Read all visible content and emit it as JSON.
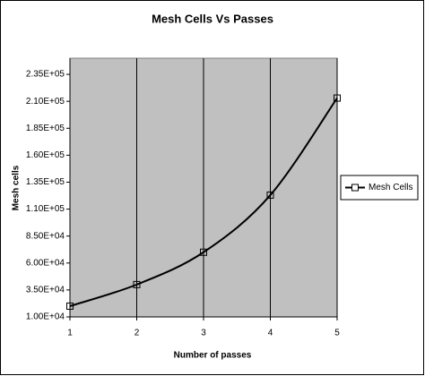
{
  "chart_data": {
    "type": "line",
    "title": "Mesh Cells Vs Passes",
    "x_label": "Number of passes",
    "y_label": "Mesh cells",
    "x": [
      1,
      2,
      3,
      4,
      5
    ],
    "series": [
      {
        "name": "Mesh Cells",
        "color": "#000000",
        "values": [
          20000,
          40000,
          70000,
          123000,
          213000
        ]
      }
    ],
    "xlim": [
      1,
      5
    ],
    "xticks": [
      1,
      2,
      3,
      4,
      5
    ],
    "ylim": [
      10000,
      250000
    ],
    "yticks": [
      {
        "value": 10000,
        "label": "1.00E+04"
      },
      {
        "value": 35000,
        "label": "3.50E+04"
      },
      {
        "value": 60000,
        "label": "6.00E+04"
      },
      {
        "value": 85000,
        "label": "8.50E+04"
      },
      {
        "value": 110000,
        "label": "1.10E+05"
      },
      {
        "value": 135000,
        "label": "1.35E+05"
      },
      {
        "value": 160000,
        "label": "1.60E+05"
      },
      {
        "value": 185000,
        "label": "1.85E+05"
      },
      {
        "value": 210000,
        "label": "2.10E+05"
      },
      {
        "value": 235000,
        "label": "2.35E+05"
      }
    ],
    "x_grid": true,
    "legend": "right"
  }
}
